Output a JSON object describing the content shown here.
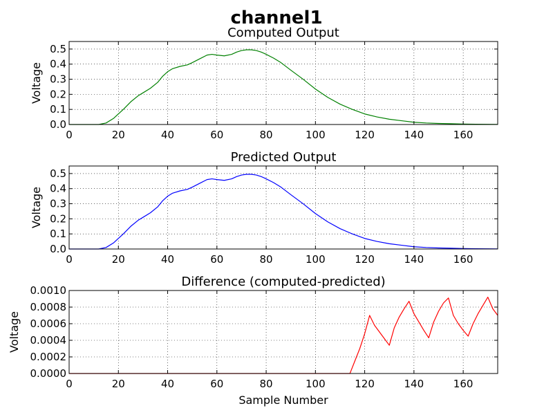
{
  "figure": {
    "title": "channel1",
    "xlabel": "Sample Number"
  },
  "chart_data": [
    {
      "type": "line",
      "title": "Computed Output",
      "xlabel": "",
      "ylabel": "Voltage",
      "xlim": [
        0,
        174
      ],
      "ylim": [
        0,
        0.55
      ],
      "xticks": [
        0,
        20,
        40,
        60,
        80,
        100,
        120,
        140,
        160
      ],
      "yticks": [
        0.0,
        0.1,
        0.2,
        0.3,
        0.4,
        0.5
      ],
      "ytick_labels": [
        "0.0",
        "0.1",
        "0.2",
        "0.3",
        "0.4",
        "0.5"
      ],
      "grid": true,
      "series": [
        {
          "color": "#008000",
          "x": [
            0,
            12,
            15,
            18,
            20,
            22,
            25,
            28,
            30,
            33,
            36,
            38,
            40,
            42,
            45,
            48,
            50,
            53,
            56,
            58,
            60,
            63,
            66,
            68,
            70,
            72,
            74,
            76,
            78,
            80,
            83,
            86,
            90,
            95,
            100,
            105,
            110,
            115,
            120,
            125,
            130,
            135,
            140,
            145,
            150,
            155,
            160,
            165,
            170,
            174
          ],
          "y": [
            0,
            0.0,
            0.01,
            0.04,
            0.07,
            0.1,
            0.15,
            0.19,
            0.21,
            0.24,
            0.28,
            0.32,
            0.35,
            0.37,
            0.385,
            0.395,
            0.41,
            0.435,
            0.46,
            0.465,
            0.46,
            0.455,
            0.465,
            0.48,
            0.49,
            0.495,
            0.495,
            0.49,
            0.48,
            0.465,
            0.44,
            0.41,
            0.36,
            0.3,
            0.235,
            0.18,
            0.135,
            0.1,
            0.07,
            0.05,
            0.035,
            0.025,
            0.015,
            0.01,
            0.007,
            0.005,
            0.003,
            0.002,
            0.001,
            0.0005
          ]
        }
      ]
    },
    {
      "type": "line",
      "title": "Predicted Output",
      "xlabel": "",
      "ylabel": "Voltage",
      "xlim": [
        0,
        174
      ],
      "ylim": [
        0,
        0.55
      ],
      "xticks": [
        0,
        20,
        40,
        60,
        80,
        100,
        120,
        140,
        160
      ],
      "yticks": [
        0.0,
        0.1,
        0.2,
        0.3,
        0.4,
        0.5
      ],
      "ytick_labels": [
        "0.0",
        "0.1",
        "0.2",
        "0.3",
        "0.4",
        "0.5"
      ],
      "grid": true,
      "series": [
        {
          "color": "#0000ff",
          "x": [
            0,
            12,
            15,
            18,
            20,
            22,
            25,
            28,
            30,
            33,
            36,
            38,
            40,
            42,
            45,
            48,
            50,
            53,
            56,
            58,
            60,
            63,
            66,
            68,
            70,
            72,
            74,
            76,
            78,
            80,
            83,
            86,
            90,
            95,
            100,
            105,
            110,
            115,
            120,
            125,
            130,
            135,
            140,
            145,
            150,
            155,
            160,
            165,
            170,
            174
          ],
          "y": [
            0,
            0.0,
            0.01,
            0.04,
            0.07,
            0.1,
            0.15,
            0.19,
            0.21,
            0.24,
            0.28,
            0.32,
            0.35,
            0.37,
            0.385,
            0.395,
            0.41,
            0.435,
            0.46,
            0.465,
            0.46,
            0.455,
            0.465,
            0.48,
            0.49,
            0.495,
            0.495,
            0.49,
            0.48,
            0.465,
            0.44,
            0.41,
            0.36,
            0.3,
            0.235,
            0.18,
            0.135,
            0.1,
            0.07,
            0.05,
            0.035,
            0.025,
            0.015,
            0.01,
            0.007,
            0.005,
            0.003,
            0.002,
            0.001,
            0.0005
          ]
        }
      ]
    },
    {
      "type": "line",
      "title": "Difference (computed-predicted)",
      "xlabel": "Sample Number",
      "ylabel": "Voltage",
      "xlim": [
        0,
        174
      ],
      "ylim": [
        0,
        0.001
      ],
      "xticks": [
        0,
        20,
        40,
        60,
        80,
        100,
        120,
        140,
        160
      ],
      "yticks": [
        0.0,
        0.0002,
        0.0004,
        0.0006,
        0.0008,
        0.001
      ],
      "ytick_labels": [
        "0.0000",
        "0.0002",
        "0.0004",
        "0.0006",
        "0.0008",
        "0.0010"
      ],
      "grid": true,
      "series": [
        {
          "color": "#ff0000",
          "x": [
            0,
            114,
            116,
            118,
            120,
            122,
            124,
            126,
            128,
            130,
            132,
            134,
            136,
            138,
            140,
            142,
            144,
            146,
            148,
            150,
            152,
            154,
            156,
            158,
            160,
            162,
            164,
            166,
            168,
            170,
            172,
            174
          ],
          "y": [
            0,
            0,
            0.00015,
            0.0003,
            0.00048,
            0.0007,
            0.00058,
            0.0005,
            0.00042,
            0.00034,
            0.00055,
            0.00068,
            0.00078,
            0.00087,
            0.00072,
            0.00062,
            0.00052,
            0.00043,
            0.00062,
            0.00075,
            0.00085,
            0.00091,
            0.0007,
            0.0006,
            0.00052,
            0.00045,
            0.0006,
            0.00072,
            0.00082,
            0.00092,
            0.00078,
            0.0007
          ]
        }
      ]
    }
  ]
}
